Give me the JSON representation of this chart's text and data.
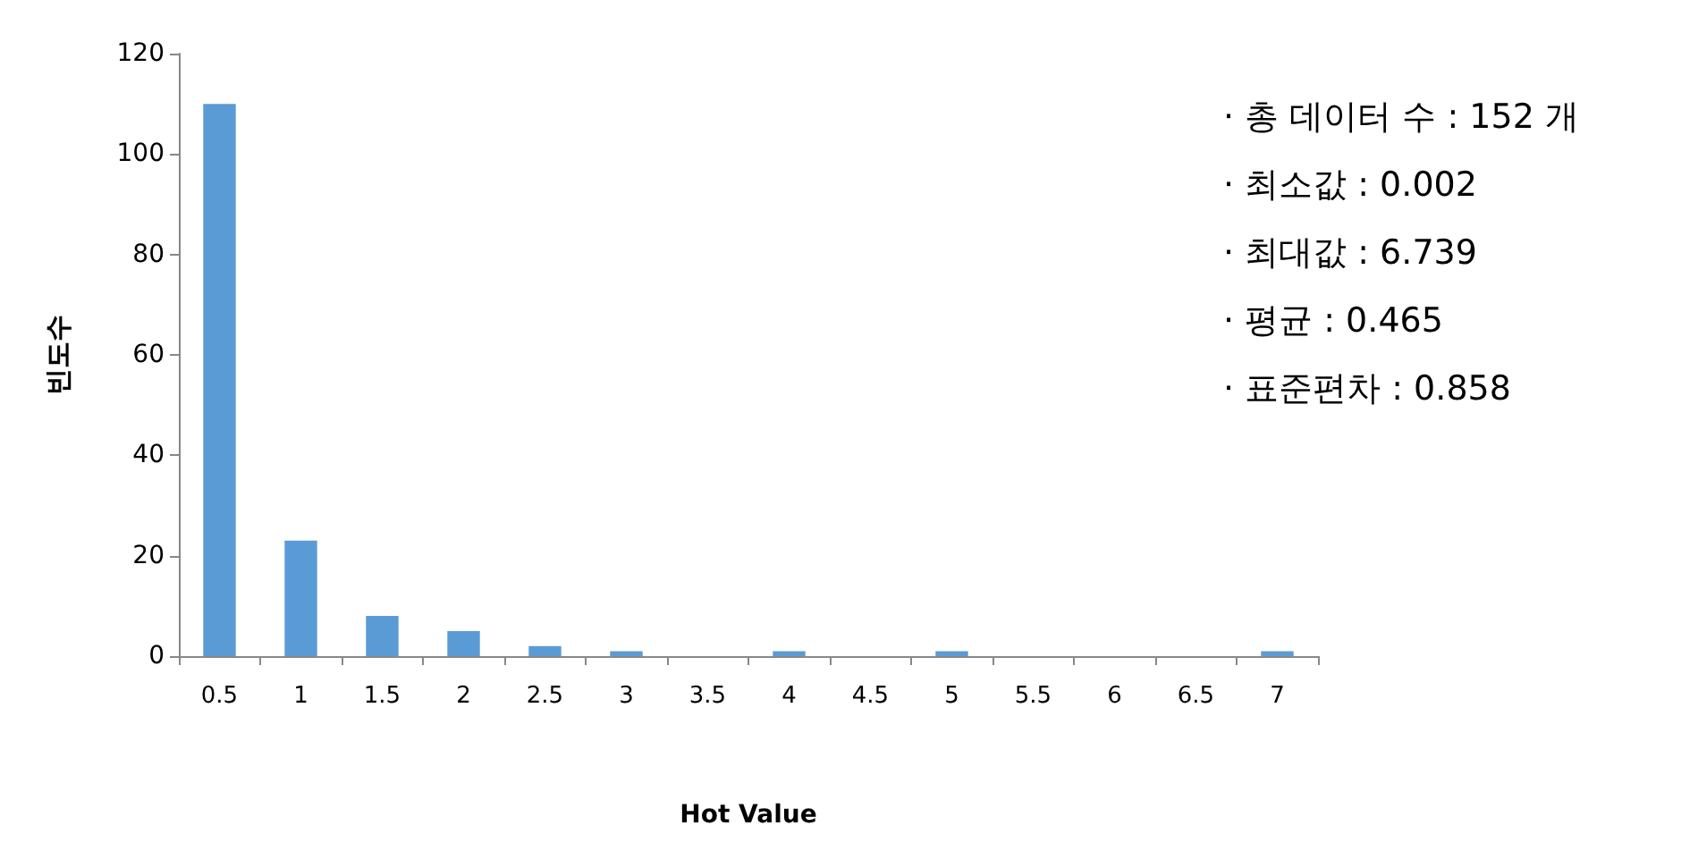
{
  "chart_data": {
    "type": "bar",
    "categories": [
      "0.5",
      "1",
      "1.5",
      "2",
      "2.5",
      "3",
      "3.5",
      "4",
      "4.5",
      "5",
      "5.5",
      "6",
      "6.5",
      "7"
    ],
    "values": [
      110,
      23,
      8,
      5,
      2,
      1,
      0,
      1,
      0,
      1,
      0,
      0,
      0,
      1
    ],
    "color": "#5b9bd5",
    "xlabel": "Hot Value",
    "ylabel": "빈도수",
    "ylim": [
      0,
      120
    ],
    "yticks": [
      0,
      20,
      40,
      60,
      80,
      100,
      120
    ],
    "grid": false,
    "annotations": [
      "· 총 데이터 수 : 152 개",
      "· 최소값 : 0.002",
      "· 최대값 : 6.739",
      "· 평균 : 0.465",
      "· 표준편차 : 0.858"
    ]
  }
}
